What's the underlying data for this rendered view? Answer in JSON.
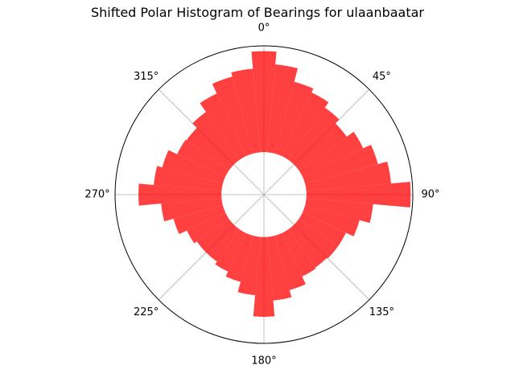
{
  "chart_data": {
    "type": "polar-bar",
    "title": "Shifted Polar Histogram of Bearings for ulaanbaatar",
    "theta_direction": "clockwise",
    "theta_zero": "north",
    "bar_color": "#ff0000",
    "bar_opacity": 0.75,
    "grid": true,
    "theta_ticks": [
      "0°",
      "45°",
      "90°",
      "135°",
      "180°",
      "225°",
      "270°",
      "315°"
    ],
    "theta_tick_degrees": [
      0,
      45,
      90,
      135,
      180,
      225,
      270,
      315
    ],
    "r_inner_offset": 0.4,
    "r_max": 1.0,
    "bin_width_degrees": 10,
    "bins_center_degrees": [
      0,
      10,
      20,
      30,
      40,
      50,
      60,
      70,
      80,
      90,
      100,
      110,
      120,
      130,
      140,
      150,
      160,
      170,
      180,
      190,
      200,
      210,
      220,
      230,
      240,
      250,
      260,
      270,
      280,
      290,
      300,
      310,
      320,
      330,
      340,
      350
    ],
    "values": [
      0.95,
      0.83,
      0.7,
      0.66,
      0.6,
      0.55,
      0.63,
      0.71,
      0.8,
      0.98,
      0.63,
      0.53,
      0.45,
      0.45,
      0.44,
      0.45,
      0.53,
      0.6,
      0.75,
      0.55,
      0.45,
      0.4,
      0.37,
      0.37,
      0.4,
      0.48,
      0.57,
      0.78,
      0.64,
      0.59,
      0.5,
      0.49,
      0.55,
      0.65,
      0.75,
      0.79
    ]
  }
}
